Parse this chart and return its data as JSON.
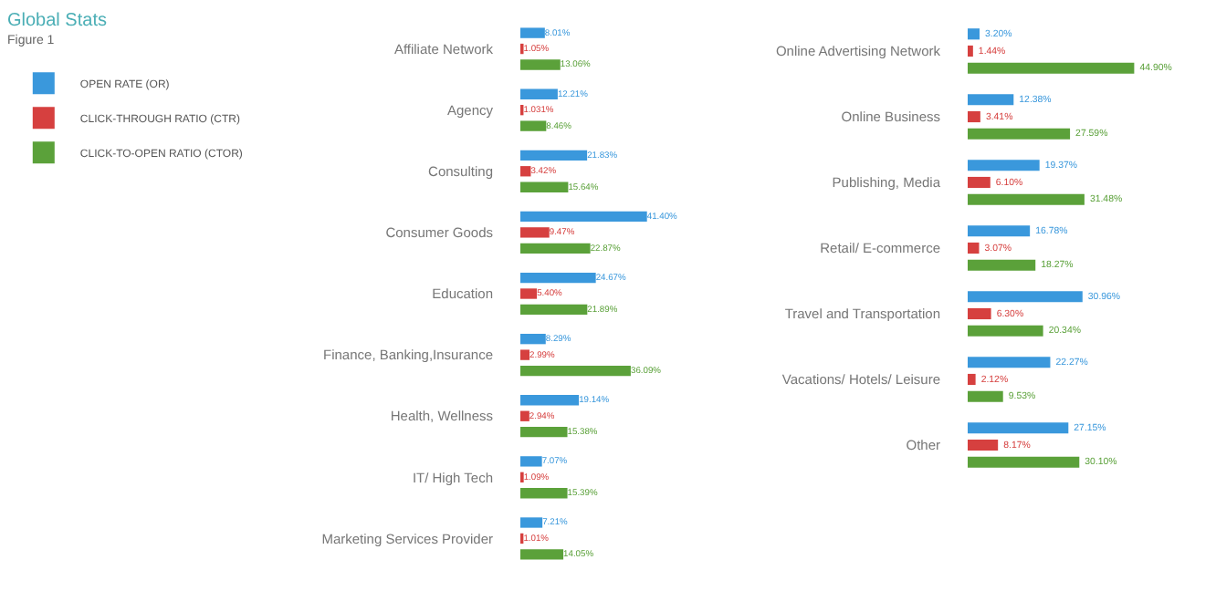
{
  "chart_data": [
    {
      "type": "other",
      "title": "Global Stats",
      "subtitle": "Figure 1"
    },
    {
      "type": "bar",
      "orientation": "horizontal",
      "legend": "left",
      "tick_labels": "y",
      "grid": false,
      "categories": [
        "Affiliate Network",
        "Agency",
        "Consulting",
        "Consumer Goods",
        "Education",
        "Finance, Banking,Insurance",
        "Health, Wellness",
        "IT/ High Tech",
        "Marketing Services Provider"
      ],
      "series": [
        {
          "name": "OPEN RATE (OR)",
          "color": "#3a98dc",
          "values": [
            8.01,
            12.21,
            21.83,
            41.4,
            24.67,
            8.29,
            19.14,
            7.07,
            7.21
          ],
          "value_labels": [
            "8.01%",
            "12.21%",
            "21.83%",
            "41.40%",
            "24.67%",
            "8.29%",
            "19.14%",
            "7.07%",
            "7.21%"
          ]
        },
        {
          "name": "CLICK-THROUGH RATIO (CTR)",
          "color": "#d6403f",
          "values": [
            1.05,
            1.031,
            3.42,
            9.47,
            5.4,
            2.99,
            2.94,
            1.09,
            1.01
          ],
          "value_labels": [
            "1.05%",
            "1.031%",
            "3.42%",
            "9.47%",
            "5.40%",
            "2.99%",
            "2.94%",
            "1.09%",
            "1.01%"
          ]
        },
        {
          "name": "CLICK-TO-OPEN RATIO (CTOR)",
          "color": "#5ba13a",
          "values": [
            13.06,
            8.46,
            15.64,
            22.87,
            21.89,
            36.09,
            15.38,
            15.39,
            14.05
          ],
          "value_labels": [
            "13.06%",
            "8.46%",
            "15.64%",
            "22.87%",
            "21.89%",
            "36.09%",
            "15.38%",
            "15.39%",
            "14.05%"
          ]
        }
      ]
    },
    {
      "type": "bar",
      "orientation": "horizontal",
      "legend": false,
      "tick_labels": "y",
      "grid": false,
      "categories": [
        "Online Advertising Network",
        "Online Business",
        "Publishing, Media",
        "Retail/ E-commerce",
        "Travel and Transportation",
        "Vacations/ Hotels/ Leisure",
        "Other"
      ],
      "series": [
        {
          "color": "#3a98dc",
          "values": [
            3.2,
            12.38,
            19.37,
            16.78,
            30.96,
            22.27,
            27.15
          ],
          "value_labels": [
            "3.20%",
            "12.38%",
            "19.37%",
            "16.78%",
            "30.96%",
            "22.27%",
            "27.15%"
          ]
        },
        {
          "color": "#d6403f",
          "values": [
            1.44,
            3.41,
            6.1,
            3.07,
            6.3,
            2.12,
            8.17
          ],
          "value_labels": [
            "1.44%",
            "3.41%",
            "6.10%",
            "3.07%",
            "6.30%",
            "2.12%",
            "8.17%"
          ]
        },
        {
          "color": "#5ba13a",
          "values": [
            44.9,
            27.59,
            31.48,
            18.27,
            20.34,
            9.53,
            30.1
          ],
          "value_labels": [
            "44.90%",
            "27.59%",
            "31.48%",
            "18.27%",
            "20.34%",
            "9.53%",
            "30.10%"
          ]
        }
      ]
    }
  ]
}
